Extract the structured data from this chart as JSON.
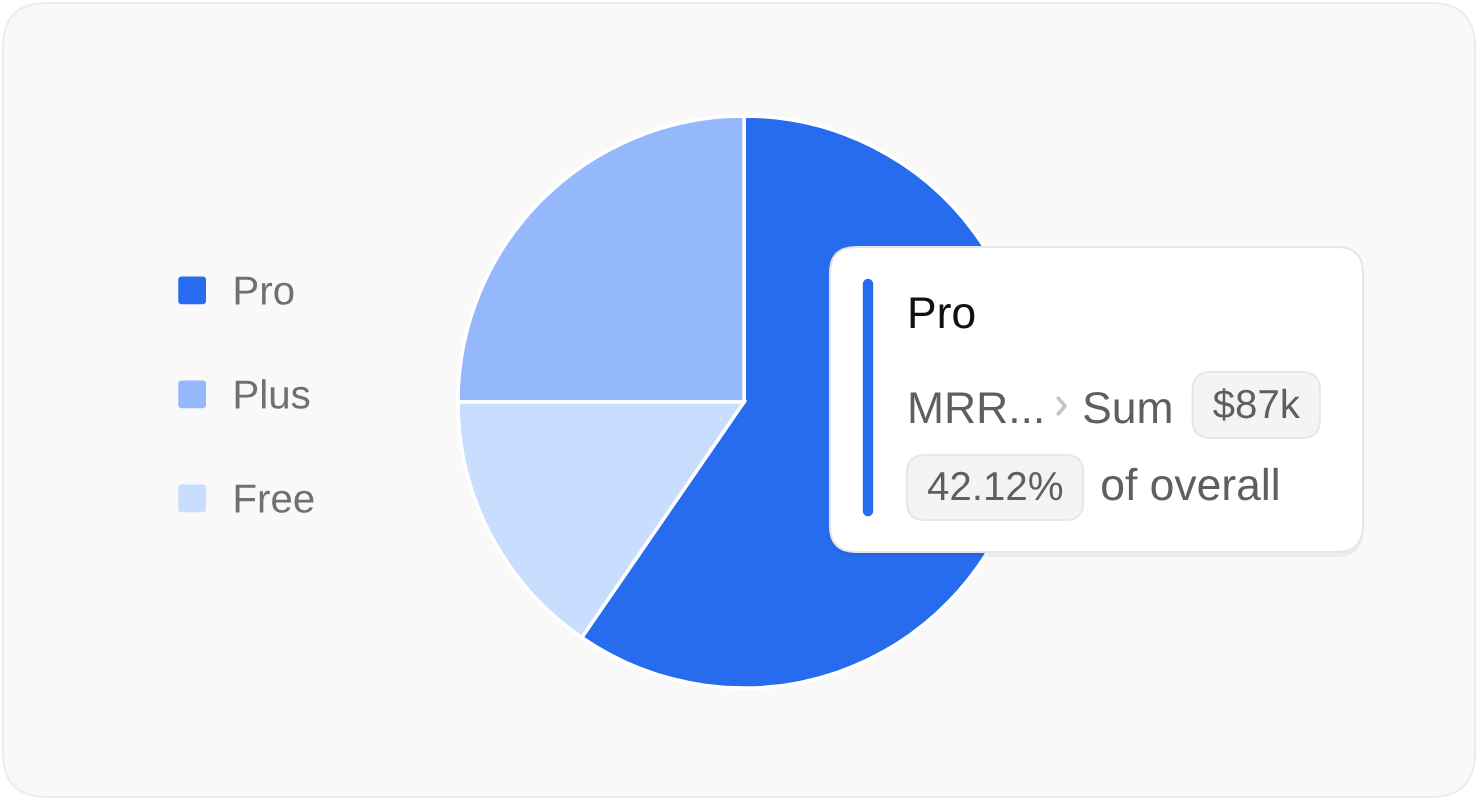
{
  "chart_data": {
    "type": "pie",
    "categories": [
      "Pro",
      "Plus",
      "Free"
    ],
    "values": [
      59.6,
      25,
      15.4
    ],
    "colors": [
      "#276cee",
      "#95b8fd",
      "#c9ddfe"
    ],
    "legend": "left",
    "annotations": [
      "Pro",
      "MRR...",
      "Sum",
      "$87k",
      "42.12%",
      "of overall"
    ]
  }
}
